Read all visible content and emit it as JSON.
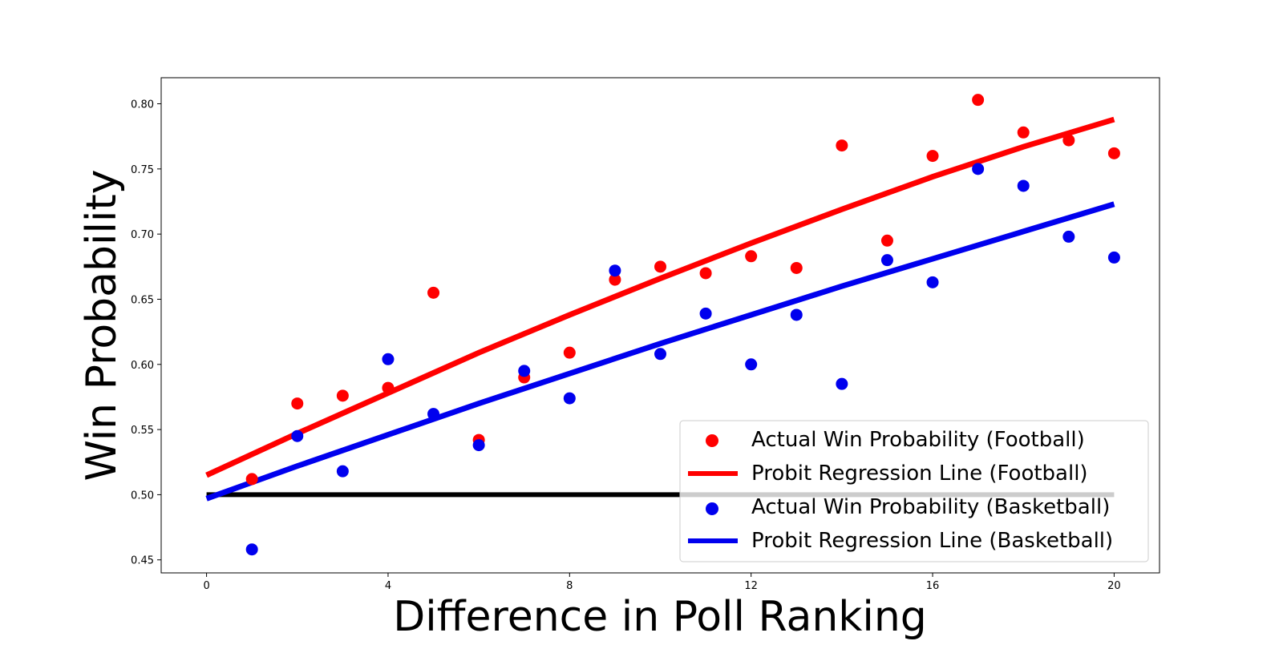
{
  "chart_data": {
    "type": "scatter",
    "title": "",
    "xlabel": "Difference in Poll Ranking",
    "ylabel": "Win Probability",
    "xlim": [
      -1,
      21
    ],
    "ylim": [
      0.44,
      0.82
    ],
    "xticks": [
      0,
      4,
      8,
      12,
      16,
      20
    ],
    "yticks": [
      0.45,
      0.5,
      0.55,
      0.6,
      0.65,
      0.7,
      0.75,
      0.8
    ],
    "grid": false,
    "legend_position": "lower-right",
    "reference_line": {
      "y": 0.5,
      "x_range": [
        0,
        20
      ],
      "color": "#000000"
    },
    "series": [
      {
        "name": "Actual Win Probability (Football)",
        "kind": "scatter",
        "color": "#ff0000",
        "x": [
          1,
          2,
          3,
          4,
          5,
          6,
          7,
          8,
          9,
          10,
          11,
          12,
          13,
          14,
          15,
          16,
          17,
          18,
          19,
          20
        ],
        "y": [
          0.512,
          0.57,
          0.576,
          0.582,
          0.655,
          0.542,
          0.59,
          0.609,
          0.665,
          0.675,
          0.67,
          0.683,
          0.674,
          0.768,
          0.695,
          0.76,
          0.803,
          0.778,
          0.772,
          0.762
        ]
      },
      {
        "name": "Probit Regression Line (Football)",
        "kind": "line",
        "color": "#ff0000",
        "x": [
          0,
          2,
          4,
          6,
          8,
          10,
          12,
          14,
          16,
          18,
          20
        ],
        "y": [
          0.515,
          0.547,
          0.578,
          0.609,
          0.638,
          0.666,
          0.693,
          0.719,
          0.744,
          0.767,
          0.788
        ]
      },
      {
        "name": "Actual Win Probability (Basketball)",
        "kind": "scatter",
        "color": "#0000ee",
        "x": [
          1,
          2,
          3,
          4,
          5,
          6,
          7,
          8,
          9,
          10,
          11,
          12,
          13,
          14,
          15,
          16,
          17,
          18,
          19,
          20
        ],
        "y": [
          0.458,
          0.545,
          0.518,
          0.604,
          0.562,
          0.538,
          0.595,
          0.574,
          0.672,
          0.608,
          0.639,
          0.6,
          0.638,
          0.585,
          0.68,
          0.663,
          0.75,
          0.737,
          0.698,
          0.682
        ]
      },
      {
        "name": "Probit Regression Line (Basketball)",
        "kind": "line",
        "color": "#0000ee",
        "x": [
          0,
          2,
          4,
          6,
          8,
          10,
          12,
          14,
          16,
          18,
          20
        ],
        "y": [
          0.497,
          0.522,
          0.546,
          0.57,
          0.593,
          0.616,
          0.638,
          0.66,
          0.681,
          0.702,
          0.723
        ]
      }
    ]
  }
}
